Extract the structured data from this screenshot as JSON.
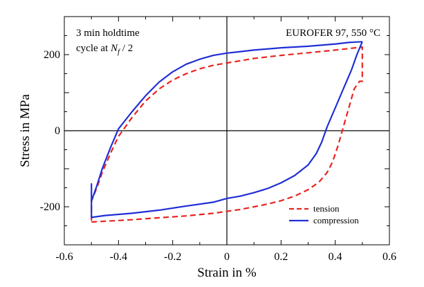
{
  "chart_data": {
    "type": "line",
    "xlabel": "Strain in %",
    "ylabel": "Stress in MPa",
    "xlim": [
      -0.6,
      0.6
    ],
    "ylim": [
      -300,
      300
    ],
    "x_ticks": [
      -0.6,
      -0.4,
      -0.2,
      0,
      0.2,
      0.4,
      0.6
    ],
    "x_tick_labels": [
      "-0.6",
      "-0.4",
      "-0.2",
      "0",
      "0.2",
      "0.4",
      "0.6"
    ],
    "y_ticks": [
      -200,
      0,
      200
    ],
    "y_tick_labels": [
      "-200",
      "0",
      "200"
    ],
    "zero_lines": true,
    "annotation_left": {
      "line1": "3 min holdtime",
      "line2_prefix": "cycle at ",
      "line2_var": "N",
      "line2_sub": "f",
      "line2_suffix": " / 2"
    },
    "annotation_right": "EUROFER 97, 550 °C",
    "legend_position": "lower-right",
    "series": [
      {
        "name": "tension",
        "color": "#e8231f",
        "style": "dashed",
        "points": [
          [
            -0.5,
            -240
          ],
          [
            -0.45,
            -238
          ],
          [
            -0.35,
            -234
          ],
          [
            -0.25,
            -229
          ],
          [
            -0.15,
            -224
          ],
          [
            -0.05,
            -217
          ],
          [
            0.0,
            -212
          ],
          [
            0.05,
            -207
          ],
          [
            0.1,
            -200
          ],
          [
            0.15,
            -193
          ],
          [
            0.2,
            -184
          ],
          [
            0.25,
            -172
          ],
          [
            0.3,
            -155
          ],
          [
            0.34,
            -135
          ],
          [
            0.37,
            -110
          ],
          [
            0.39,
            -82
          ],
          [
            0.41,
            -40
          ],
          [
            0.43,
            10
          ],
          [
            0.45,
            60
          ],
          [
            0.47,
            110
          ],
          [
            0.49,
            130
          ],
          [
            0.5,
            130
          ],
          [
            0.5,
            220
          ],
          [
            0.45,
            216
          ],
          [
            0.4,
            212
          ],
          [
            0.3,
            205
          ],
          [
            0.2,
            198
          ],
          [
            0.1,
            190
          ],
          [
            0.0,
            178
          ],
          [
            -0.05,
            172
          ],
          [
            -0.1,
            163
          ],
          [
            -0.15,
            150
          ],
          [
            -0.2,
            133
          ],
          [
            -0.25,
            110
          ],
          [
            -0.3,
            78
          ],
          [
            -0.35,
            35
          ],
          [
            -0.4,
            -15
          ],
          [
            -0.43,
            -60
          ],
          [
            -0.46,
            -110
          ],
          [
            -0.48,
            -150
          ],
          [
            -0.5,
            -185
          ],
          [
            -0.5,
            -240
          ]
        ]
      },
      {
        "name": "compression",
        "color": "#1f2ed6",
        "style": "solid",
        "points": [
          [
            0.5,
            234
          ],
          [
            0.45,
            232
          ],
          [
            0.4,
            228
          ],
          [
            0.3,
            222
          ],
          [
            0.2,
            218
          ],
          [
            0.1,
            212
          ],
          [
            0.05,
            208
          ],
          [
            0.0,
            204
          ],
          [
            -0.05,
            198
          ],
          [
            -0.1,
            188
          ],
          [
            -0.15,
            175
          ],
          [
            -0.2,
            155
          ],
          [
            -0.25,
            128
          ],
          [
            -0.3,
            92
          ],
          [
            -0.35,
            50
          ],
          [
            -0.4,
            5
          ],
          [
            -0.43,
            -45
          ],
          [
            -0.46,
            -100
          ],
          [
            -0.48,
            -145
          ],
          [
            -0.5,
            -185
          ],
          [
            -0.5,
            -140
          ],
          [
            -0.5,
            -228
          ],
          [
            -0.45,
            -223
          ],
          [
            -0.35,
            -217
          ],
          [
            -0.25,
            -209
          ],
          [
            -0.15,
            -198
          ],
          [
            -0.05,
            -188
          ],
          [
            0.0,
            -178
          ],
          [
            0.05,
            -172
          ],
          [
            0.1,
            -163
          ],
          [
            0.15,
            -152
          ],
          [
            0.2,
            -137
          ],
          [
            0.25,
            -118
          ],
          [
            0.3,
            -90
          ],
          [
            0.33,
            -60
          ],
          [
            0.35,
            -30
          ],
          [
            0.37,
            10
          ],
          [
            0.4,
            60
          ],
          [
            0.43,
            110
          ],
          [
            0.46,
            160
          ],
          [
            0.48,
            200
          ],
          [
            0.5,
            234
          ]
        ]
      }
    ]
  }
}
